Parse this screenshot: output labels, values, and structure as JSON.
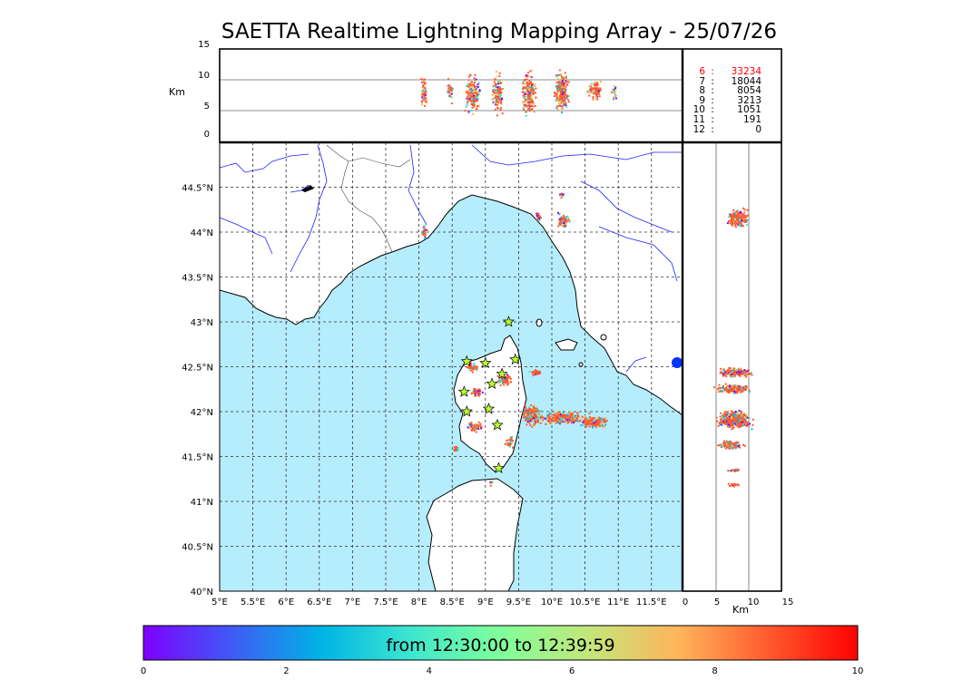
{
  "title": "SAETTA Realtime Lightning Mapping Array - 25/07/26",
  "colorbar": {
    "caption": "from 12:30:00 to 12:39:59",
    "ticks": [
      "0",
      "2",
      "4",
      "6",
      "8",
      "10"
    ],
    "colors": [
      "#7f00ff",
      "#3e5bf5",
      "#00b4e6",
      "#3ee6cf",
      "#80ff9a",
      "#c4e67a",
      "#ffb45a",
      "#ff5a2e",
      "#ff0000"
    ]
  },
  "altitude_panel": {
    "unit_label": "Km",
    "yticks": [
      "0",
      "5",
      "10",
      "15"
    ]
  },
  "side_panel": {
    "unit_label": "Km",
    "xticks": [
      "0",
      "5",
      "10",
      "15"
    ]
  },
  "map": {
    "lon_labels": [
      "5°E",
      "5.5°E",
      "6°E",
      "6.5°E",
      "7°E",
      "7.5°E",
      "8°E",
      "8.5°E",
      "9°E",
      "9.5°E",
      "10°E",
      "10.5°E",
      "11°E",
      "11.5°E"
    ],
    "lat_labels": [
      "44.5°N",
      "44°N",
      "43.5°N",
      "43°N",
      "42.5°N",
      "42°N",
      "41.5°N",
      "41°N",
      "40.5°N",
      "40°N"
    ],
    "sea_color": "#b6edfc",
    "land_color": "#ffffff",
    "station_color": "#b8ff2e",
    "stations": [
      {
        "lon": 9.35,
        "lat": 43.0
      },
      {
        "lon": 8.72,
        "lat": 42.56
      },
      {
        "lon": 9.0,
        "lat": 42.54
      },
      {
        "lon": 9.25,
        "lat": 42.42
      },
      {
        "lon": 9.45,
        "lat": 42.58
      },
      {
        "lon": 9.1,
        "lat": 42.31
      },
      {
        "lon": 8.68,
        "lat": 42.22
      },
      {
        "lon": 8.72,
        "lat": 42.0
      },
      {
        "lon": 9.05,
        "lat": 42.03
      },
      {
        "lon": 9.18,
        "lat": 41.85
      },
      {
        "lon": 9.2,
        "lat": 41.37
      }
    ]
  },
  "altitude_counts": [
    {
      "alt": "6",
      "count": "33234",
      "color": "#ff0000"
    },
    {
      "alt": "7",
      "count": "18044",
      "color": "#000000"
    },
    {
      "alt": "8",
      "count": "8054",
      "color": "#000000"
    },
    {
      "alt": "9",
      "count": "3213",
      "color": "#000000"
    },
    {
      "alt": "10",
      "count": "1051",
      "color": "#000000"
    },
    {
      "alt": "11",
      "count": "191",
      "color": "#000000"
    },
    {
      "alt": "12",
      "count": "0",
      "color": "#000000"
    }
  ]
}
